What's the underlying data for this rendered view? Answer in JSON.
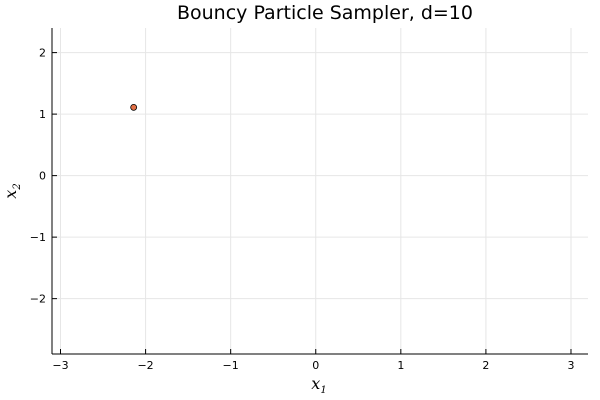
{
  "chart_data": {
    "type": "scatter",
    "title": "Bouncy Particle Sampler, d=10",
    "xlabel": {
      "base": "x",
      "sub": "1"
    },
    "ylabel": {
      "base": "x",
      "sub": "2"
    },
    "xlim": [
      -3.1,
      3.2
    ],
    "ylim": [
      -2.9,
      2.4
    ],
    "xticks": [
      -3,
      -2,
      -1,
      0,
      1,
      2,
      3
    ],
    "yticks": [
      -2,
      -1,
      0,
      1,
      2
    ],
    "xtick_labels": [
      "−3",
      "−2",
      "−1",
      "0",
      "1",
      "2",
      "3"
    ],
    "ytick_labels": [
      "−2",
      "−1",
      "0",
      "1",
      "2"
    ],
    "grid": true,
    "legend": "none",
    "series": [
      {
        "points": [
          {
            "x": -2.14,
            "y": 1.11
          }
        ],
        "color": "#e26f46",
        "edge_color": "#000000"
      }
    ]
  }
}
